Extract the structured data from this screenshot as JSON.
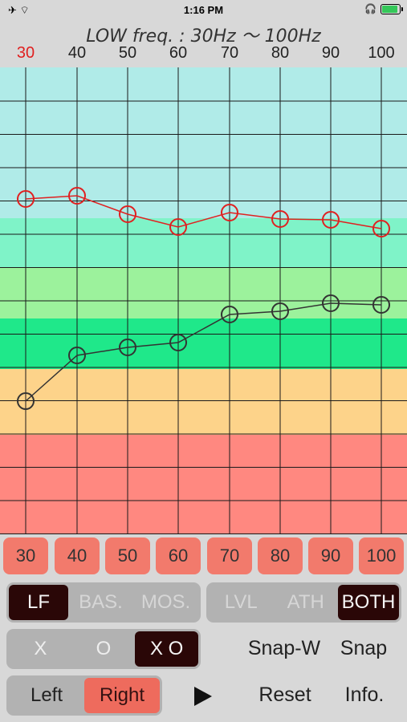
{
  "status": {
    "left_icons": "✈ ⌔",
    "time": "1:16 PM",
    "right_icons": "🎧"
  },
  "header": {
    "title": "LOW freq. : 30Hz 〜 100Hz"
  },
  "frequencies": [
    "30",
    "40",
    "50",
    "60",
    "70",
    "80",
    "90",
    "100"
  ],
  "active_frequency": "30",
  "chart_data": {
    "type": "line",
    "x": [
      30,
      40,
      50,
      60,
      70,
      80,
      90,
      100
    ],
    "grid": true,
    "series": [
      {
        "color": "#e02020",
        "values": [
          248,
          244,
          267,
          283,
          265,
          273,
          274,
          285
        ]
      },
      {
        "color": "#333333",
        "values": [
          500,
          443,
          433,
          427,
          392,
          388,
          378,
          380
        ]
      }
    ],
    "bands": [
      {
        "color": "#b0ebe8"
      },
      {
        "color": "#7ff3c8"
      },
      {
        "color": "#9cf29c"
      },
      {
        "color": "#1fe88a"
      },
      {
        "color": "#fdd38a"
      },
      {
        "color": "#ff8880"
      }
    ]
  },
  "mode_segment": {
    "items": [
      "LF",
      "BAS.",
      "MOS."
    ],
    "selected": "LF"
  },
  "display_segment": {
    "items": [
      "LVL",
      "ATH",
      "BOTH"
    ],
    "selected": "BOTH"
  },
  "marker_segment": {
    "items": [
      "X",
      "O",
      "X O"
    ],
    "selected": "X O"
  },
  "ear_segment": {
    "items": [
      "Left",
      "Right"
    ],
    "selected": "Right"
  },
  "buttons": {
    "snap_w": "Snap-W",
    "snap": "Snap",
    "reset": "Reset",
    "info": "Info."
  }
}
